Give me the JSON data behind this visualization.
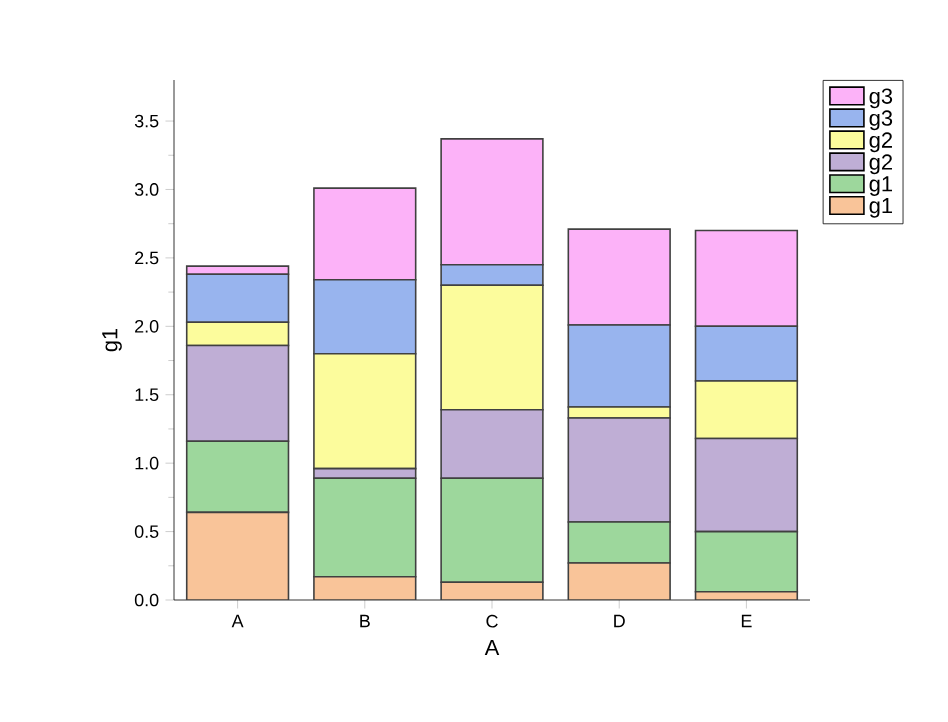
{
  "chart_data": {
    "type": "bar",
    "stacked": true,
    "xlabel": "A",
    "ylabel": "g1",
    "categories": [
      "A",
      "B",
      "C",
      "D",
      "E"
    ],
    "ylim": [
      0,
      3.8
    ],
    "yticks": [
      {
        "value": 0,
        "label": "0.0"
      },
      {
        "value": 0.5,
        "label": "0.5"
      },
      {
        "value": 1,
        "label": "1.0"
      },
      {
        "value": 1.5,
        "label": "1.5"
      },
      {
        "value": 2,
        "label": "2.0"
      },
      {
        "value": 2.5,
        "label": "2.5"
      },
      {
        "value": 3,
        "label": "3.0"
      },
      {
        "value": 3.5,
        "label": "3.5"
      }
    ],
    "legend": "right",
    "grid": false,
    "series": [
      {
        "name": "g1",
        "color": "#f9c499",
        "values": [
          0.64,
          0.17,
          0.13,
          0.27,
          0.06
        ]
      },
      {
        "name": "g1",
        "color": "#9dd79c",
        "values": [
          0.52,
          0.72,
          0.76,
          0.3,
          0.44
        ]
      },
      {
        "name": "g2",
        "color": "#bfaed5",
        "values": [
          0.7,
          0.07,
          0.5,
          0.76,
          0.68
        ]
      },
      {
        "name": "g2",
        "color": "#fcfc9c",
        "values": [
          0.17,
          0.84,
          0.91,
          0.08,
          0.42
        ]
      },
      {
        "name": "g3",
        "color": "#98b4ee",
        "values": [
          0.35,
          0.54,
          0.15,
          0.6,
          0.4
        ]
      },
      {
        "name": "g3",
        "color": "#fcb2f8",
        "values": [
          0.06,
          0.67,
          0.92,
          0.7,
          0.7
        ]
      }
    ]
  }
}
